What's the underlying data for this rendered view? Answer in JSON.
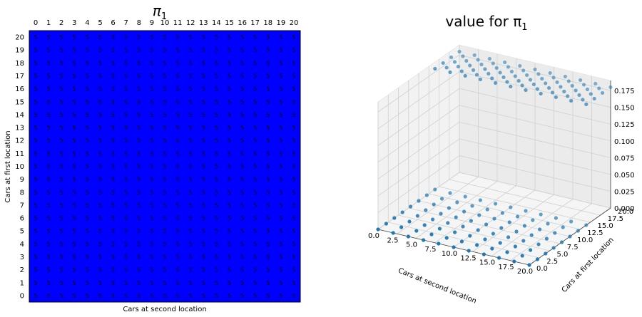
{
  "chart_data": [
    {
      "type": "heatmap",
      "title": "π",
      "title_subscript": "1",
      "xlabel": "Cars at second location",
      "ylabel": "Cars at first location",
      "x_ticks": [
        0,
        1,
        2,
        3,
        4,
        5,
        6,
        7,
        8,
        9,
        10,
        11,
        12,
        13,
        14,
        15,
        16,
        17,
        18,
        19,
        20
      ],
      "y_ticks": [
        0,
        1,
        2,
        3,
        4,
        5,
        6,
        7,
        8,
        9,
        10,
        11,
        12,
        13,
        14,
        15,
        16,
        17,
        18,
        19,
        20
      ],
      "cell_value": 5,
      "cell_label": "5",
      "fill_color": "#0000ff",
      "grid": false
    },
    {
      "type": "scatter",
      "title": "value for π",
      "title_subscript": "1",
      "xlabel": "Cars at second location",
      "ylabel": "Cars at first location",
      "zlabel": "",
      "x_ticks": [
        "0.0",
        "2.5",
        "5.0",
        "7.5",
        "10.0",
        "12.5",
        "15.0",
        "17.5",
        "20.0"
      ],
      "y_ticks": [
        "0.0",
        "2.5",
        "5.0",
        "7.5",
        "10.0",
        "12.5",
        "15.0",
        "17.5",
        "20.0"
      ],
      "z_ticks": [
        "0.000",
        "0.025",
        "0.050",
        "0.075",
        "0.100",
        "0.125",
        "0.150",
        "0.175"
      ],
      "xlim": [
        0,
        20
      ],
      "ylim": [
        0,
        20
      ],
      "zlim": [
        0,
        0.19
      ],
      "marker_color": "#1f77b4",
      "grid": true,
      "points": {
        "x_range": [
          0,
          20
        ],
        "y_values": [
          0,
          2,
          4,
          6,
          8,
          10,
          12,
          14
        ],
        "z_value_low_rows": 0,
        "plateau": {
          "x_range": [
            0,
            20
          ],
          "y_range": [
            14,
            20
          ],
          "z": 0.18
        }
      }
    }
  ]
}
